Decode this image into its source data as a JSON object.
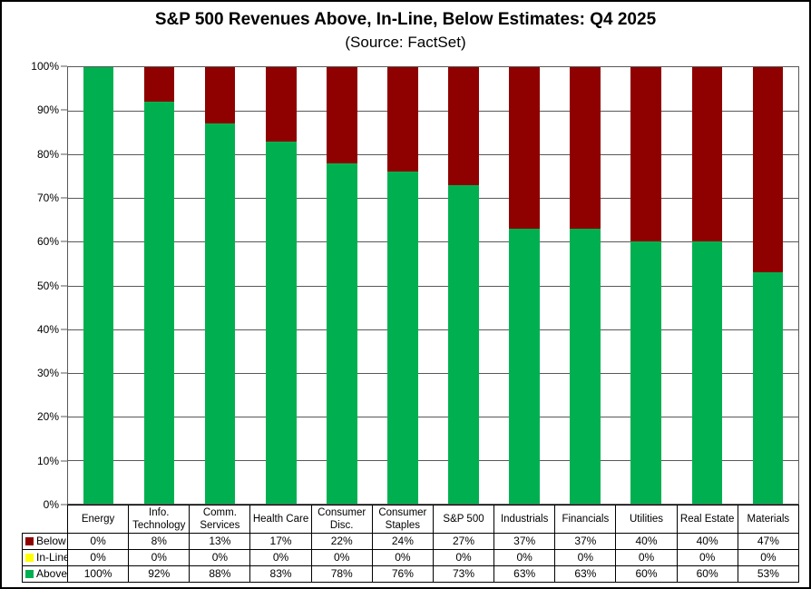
{
  "chart_data": {
    "type": "bar",
    "stacked": true,
    "title": "S&P 500 Revenues Above, In-Line, Below Estimates: Q4 2025",
    "subtitle": "(Source: FactSet)",
    "categories": [
      "Energy",
      "Info. Technology",
      "Comm. Services",
      "Health Care",
      "Consumer Disc.",
      "Consumer Staples",
      "S&P 500",
      "Industrials",
      "Financials",
      "Utilities",
      "Real Estate",
      "Materials"
    ],
    "series": [
      {
        "name": "Below",
        "color": "#8F0000",
        "values": [
          0,
          8,
          13,
          17,
          22,
          24,
          27,
          37,
          37,
          40,
          40,
          47
        ]
      },
      {
        "name": "In-Line",
        "color": "#FFFF00",
        "values": [
          0,
          0,
          0,
          0,
          0,
          0,
          0,
          0,
          0,
          0,
          0,
          0
        ]
      },
      {
        "name": "Above",
        "color": "#00B050",
        "values": [
          100,
          92,
          88,
          83,
          78,
          76,
          73,
          63,
          63,
          60,
          60,
          53
        ]
      }
    ],
    "value_suffix": "%",
    "ylim": [
      0,
      100
    ],
    "yticks": [
      "100%",
      "90%",
      "80%",
      "70%",
      "60%",
      "50%",
      "40%",
      "30%",
      "20%",
      "10%",
      "0%"
    ],
    "grid": true,
    "legend_position": "table-left",
    "colors": {
      "grid": "#595959",
      "axis": "#595959",
      "table_border": "#000000",
      "background": "#FFFFFF"
    }
  }
}
